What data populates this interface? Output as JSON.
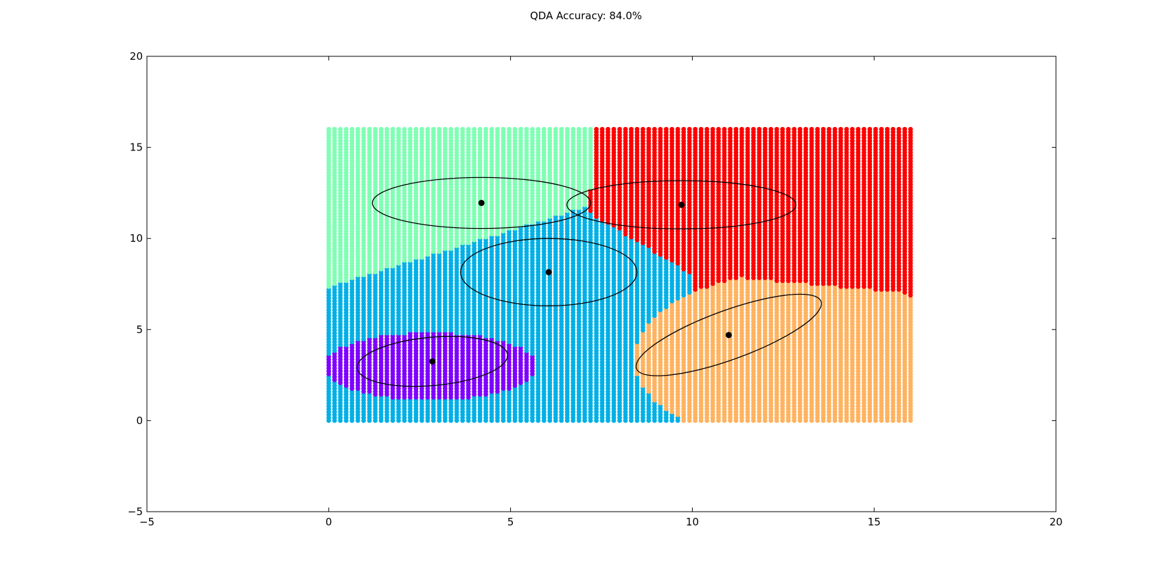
{
  "chart_data": {
    "type": "scatter",
    "title": "QDA Accuracy: 84.0%",
    "xlabel": "",
    "ylabel": "",
    "xlim": [
      -5,
      20
    ],
    "ylim": [
      -5,
      20
    ],
    "xticks": [
      -5,
      0,
      5,
      10,
      15,
      20
    ],
    "yticks": [
      -5,
      0,
      5,
      10,
      15,
      20
    ],
    "grid": false,
    "legend": "none",
    "grid_sampling": {
      "x_range": [
        0,
        16
      ],
      "y_range": [
        0,
        16
      ],
      "x_step": 0.16,
      "y_step": 0.16
    },
    "classes": [
      {
        "id": "purple",
        "color": "#7f00ff",
        "mean": [
          2.85,
          3.25
        ],
        "ellipse": {
          "width": 4.15,
          "height": 2.65,
          "angle_deg": 5
        }
      },
      {
        "id": "blue",
        "color": "#00b0e6",
        "mean": [
          6.05,
          8.15
        ],
        "ellipse": {
          "width": 4.85,
          "height": 3.7,
          "angle_deg": 0
        }
      },
      {
        "id": "green",
        "color": "#80ffb4",
        "mean": [
          4.2,
          11.95
        ],
        "ellipse": {
          "width": 6.0,
          "height": 2.8,
          "angle_deg": 0
        }
      },
      {
        "id": "red",
        "color": "#ff0000",
        "mean": [
          9.7,
          11.85
        ],
        "ellipse": {
          "width": 6.3,
          "height": 2.65,
          "angle_deg": 0
        }
      },
      {
        "id": "orange",
        "color": "#ffb360",
        "mean": [
          11.0,
          4.7
        ],
        "ellipse": {
          "width": 5.4,
          "height": 2.7,
          "angle_deg": 20
        }
      }
    ],
    "regions_model": {
      "purple_core": {
        "center": [
          2.8,
          3.0
        ],
        "rx": 2.95,
        "ry": 1.85
      },
      "green_blue_boundary": {
        "x0": 0.0,
        "y0": 7.35,
        "x1": 7.0,
        "y1": 11.7
      },
      "red_boundary_top_x": 7.35,
      "blue_red_boundary": {
        "x0": 7.1,
        "y0": 11.5,
        "x1": 10.0,
        "y1": 8.0
      },
      "orange_core": {
        "center": [
          12.9,
          3.4
        ],
        "rx": 4.5,
        "ry": 4.75
      },
      "orange_red_boundary": {
        "x0": 10.0,
        "y0": 8.1,
        "x1": 16.0,
        "y1": 7.0
      }
    }
  }
}
